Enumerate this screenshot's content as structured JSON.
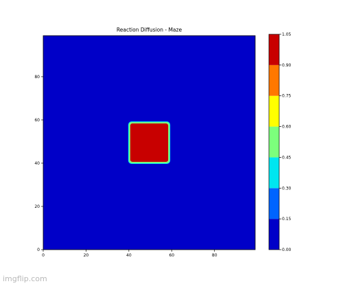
{
  "watermark": "imgflip.com",
  "colors": {
    "background": "#0000c8",
    "square_fill": "#c80000",
    "square_edge": "#7cff7c",
    "axis": "#000000"
  },
  "chart_data": {
    "type": "heatmap",
    "title": "Reaction Diffusion - Maze",
    "xlabel": "",
    "ylabel": "",
    "xlim": [
      0,
      99
    ],
    "ylim": [
      0,
      99
    ],
    "xticks": [
      0,
      20,
      40,
      60,
      80
    ],
    "yticks": [
      0,
      20,
      40,
      60,
      80
    ],
    "grid": false,
    "background_value": 0.0,
    "regions": [
      {
        "shape": "rounded-square",
        "x": [
          40,
          59
        ],
        "y": [
          40,
          59
        ],
        "value": 1.0,
        "edge_value": 0.55
      }
    ],
    "colorbar": {
      "ticks": [
        "0.00",
        "0.15",
        "0.30",
        "0.45",
        "0.60",
        "0.75",
        "0.90",
        "1.05"
      ],
      "bins": [
        {
          "from": 0.0,
          "to": 0.15,
          "color": "#0000c8"
        },
        {
          "from": 0.15,
          "to": 0.3,
          "color": "#0064ff"
        },
        {
          "from": 0.3,
          "to": 0.45,
          "color": "#00e6f0"
        },
        {
          "from": 0.45,
          "to": 0.6,
          "color": "#7cff7c"
        },
        {
          "from": 0.6,
          "to": 0.75,
          "color": "#ffff00"
        },
        {
          "from": 0.75,
          "to": 0.9,
          "color": "#ff7800"
        },
        {
          "from": 0.9,
          "to": 1.05,
          "color": "#c80000"
        }
      ]
    }
  }
}
